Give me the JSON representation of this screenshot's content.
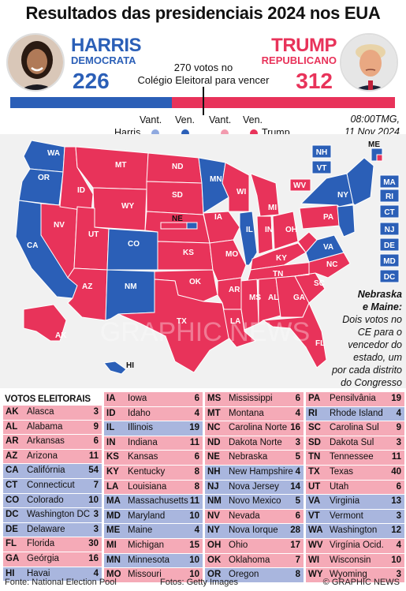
{
  "title": "Resultados das presidenciais 2024 nos EUA",
  "harris": {
    "name": "HARRIS",
    "party": "DEMOCRATA",
    "votes": "226",
    "color": "#2b5fb7"
  },
  "trump": {
    "name": "TRUMP",
    "party": "REPUBLICANO",
    "votes": "312",
    "color": "#e8335a"
  },
  "threshold": {
    "line1": "270 votos no",
    "line2": "Colégio Eleitoral para vencer"
  },
  "bar": {
    "dem_votes": 226,
    "rep_votes": 312,
    "total": 538
  },
  "legend": {
    "vant": "Vant.",
    "ven": "Ven.",
    "harris": "Harris",
    "trump": "Trump",
    "colors": {
      "dem_lead": "#8fa9df",
      "dem_win": "#2b5fb7",
      "rep_lead": "#f29aae",
      "rep_win": "#e8335a"
    }
  },
  "timestamp": {
    "line1": "08:00TMG,",
    "line2": "11 Nov  2024"
  },
  "map": {
    "watermark": "GRAPHIC NEWS",
    "states_on_map": [
      "WA",
      "OR",
      "CA",
      "NV",
      "ID",
      "MT",
      "WY",
      "UT",
      "AZ",
      "CO",
      "NM",
      "ND",
      "SD",
      "NE",
      "KS",
      "OK",
      "TX",
      "MN",
      "IA",
      "MO",
      "AR",
      "LA",
      "WI",
      "IL",
      "MI",
      "IN",
      "OH",
      "KY",
      "TN",
      "MS",
      "AL",
      "GA",
      "FL",
      "SC",
      "NC",
      "VA",
      "WV",
      "PA",
      "NY",
      "ME",
      "AK",
      "HI"
    ],
    "northeast_boxes": [
      "NH",
      "VT",
      "MA",
      "RI",
      "CT",
      "NJ",
      "DE",
      "MD",
      "DC"
    ],
    "maine_label": "ME",
    "nebraska_label": "NE"
  },
  "note": {
    "heading1": "Nebraska",
    "heading2": "e Maine:",
    "lines": [
      "Dois votos no",
      "CE para o",
      "vencedor do",
      "estado, um",
      "por cada distrito",
      "do Congresso"
    ]
  },
  "table": {
    "header": "VOTOS ELEITORAIS",
    "columns": [
      [
        {
          "abbr": "AK",
          "name": "Alasca",
          "ev": "3",
          "party": "R"
        },
        {
          "abbr": "AL",
          "name": "Alabama",
          "ev": "9",
          "party": "R"
        },
        {
          "abbr": "AR",
          "name": "Arkansas",
          "ev": "6",
          "party": "R"
        },
        {
          "abbr": "AZ",
          "name": "Arizona",
          "ev": "11",
          "party": "R"
        },
        {
          "abbr": "CA",
          "name": "Califórnia",
          "ev": "54",
          "party": "D"
        },
        {
          "abbr": "CT",
          "name": "Connecticut",
          "ev": "7",
          "party": "D"
        },
        {
          "abbr": "CO",
          "name": "Colorado",
          "ev": "10",
          "party": "D"
        },
        {
          "abbr": "DC",
          "name": "Washington DC",
          "ev": "3",
          "party": "D"
        },
        {
          "abbr": "DE",
          "name": "Delaware",
          "ev": "3",
          "party": "D"
        },
        {
          "abbr": "FL",
          "name": "Florida",
          "ev": "30",
          "party": "R"
        },
        {
          "abbr": "GA",
          "name": "Geórgia",
          "ev": "16",
          "party": "R"
        },
        {
          "abbr": "HI",
          "name": "Havai",
          "ev": "4",
          "party": "D"
        }
      ],
      [
        {
          "abbr": "IA",
          "name": "Iowa",
          "ev": "6",
          "party": "R"
        },
        {
          "abbr": "ID",
          "name": "Idaho",
          "ev": "4",
          "party": "R"
        },
        {
          "abbr": "IL",
          "name": "Illinois",
          "ev": "19",
          "party": "D"
        },
        {
          "abbr": "IN",
          "name": "Indiana",
          "ev": "11",
          "party": "R"
        },
        {
          "abbr": "KS",
          "name": "Kansas",
          "ev": "6",
          "party": "R"
        },
        {
          "abbr": "KY",
          "name": "Kentucky",
          "ev": "8",
          "party": "R"
        },
        {
          "abbr": "LA",
          "name": "Louisiana",
          "ev": "8",
          "party": "R"
        },
        {
          "abbr": "MA",
          "name": "Massachusetts",
          "ev": "11",
          "party": "D"
        },
        {
          "abbr": "MD",
          "name": "Maryland",
          "ev": "10",
          "party": "D"
        },
        {
          "abbr": "ME",
          "name": "Maine",
          "ev": "4",
          "party": "D"
        },
        {
          "abbr": "MI",
          "name": "Michigan",
          "ev": "15",
          "party": "R"
        },
        {
          "abbr": "MN",
          "name": "Minnesota",
          "ev": "10",
          "party": "D"
        },
        {
          "abbr": "MO",
          "name": "Missouri",
          "ev": "10",
          "party": "R"
        }
      ],
      [
        {
          "abbr": "MS",
          "name": "Mississippi",
          "ev": "6",
          "party": "R"
        },
        {
          "abbr": "MT",
          "name": "Montana",
          "ev": "4",
          "party": "R"
        },
        {
          "abbr": "NC",
          "name": "Carolina Norte",
          "ev": "16",
          "party": "R"
        },
        {
          "abbr": "ND",
          "name": "Dakota Norte",
          "ev": "3",
          "party": "R"
        },
        {
          "abbr": "NE",
          "name": "Nebraska",
          "ev": "5",
          "party": "R"
        },
        {
          "abbr": "NH",
          "name": "New Hampshire",
          "ev": "4",
          "party": "D"
        },
        {
          "abbr": "NJ",
          "name": "Nova Jersey",
          "ev": "14",
          "party": "D"
        },
        {
          "abbr": "NM",
          "name": "Novo Mexico",
          "ev": "5",
          "party": "D"
        },
        {
          "abbr": "NV",
          "name": "Nevada",
          "ev": "6",
          "party": "R"
        },
        {
          "abbr": "NY",
          "name": "Nova Iorque",
          "ev": "28",
          "party": "D"
        },
        {
          "abbr": "OH",
          "name": "Ohio",
          "ev": "17",
          "party": "R"
        },
        {
          "abbr": "OK",
          "name": "Oklahoma",
          "ev": "7",
          "party": "R"
        },
        {
          "abbr": "OR",
          "name": "Oregon",
          "ev": "8",
          "party": "D"
        }
      ],
      [
        {
          "abbr": "PA",
          "name": "Pensilvânia",
          "ev": "19",
          "party": "R"
        },
        {
          "abbr": "RI",
          "name": "Rhode Island",
          "ev": "4",
          "party": "D"
        },
        {
          "abbr": "SC",
          "name": "Carolina Sul",
          "ev": "9",
          "party": "R"
        },
        {
          "abbr": "SD",
          "name": "Dakota Sul",
          "ev": "3",
          "party": "R"
        },
        {
          "abbr": "TN",
          "name": "Tennessee",
          "ev": "11",
          "party": "R"
        },
        {
          "abbr": "TX",
          "name": "Texas",
          "ev": "40",
          "party": "R"
        },
        {
          "abbr": "UT",
          "name": "Utah",
          "ev": "6",
          "party": "R"
        },
        {
          "abbr": "VA",
          "name": "Virginia",
          "ev": "13",
          "party": "D"
        },
        {
          "abbr": "VT",
          "name": "Vermont",
          "ev": "3",
          "party": "D"
        },
        {
          "abbr": "WA",
          "name": "Washington",
          "ev": "12",
          "party": "D"
        },
        {
          "abbr": "WV",
          "name": "Virgínia Ocid.",
          "ev": "4",
          "party": "R"
        },
        {
          "abbr": "WI",
          "name": "Wisconsin",
          "ev": "10",
          "party": "R"
        },
        {
          "abbr": "WY",
          "name": "Wyoming",
          "ev": "3",
          "party": "R"
        }
      ]
    ]
  },
  "footer": {
    "source": "Fonte: National Election Pool",
    "photos": "Fotos: Getty Images",
    "credit": "© GRAPHIC NEWS"
  }
}
